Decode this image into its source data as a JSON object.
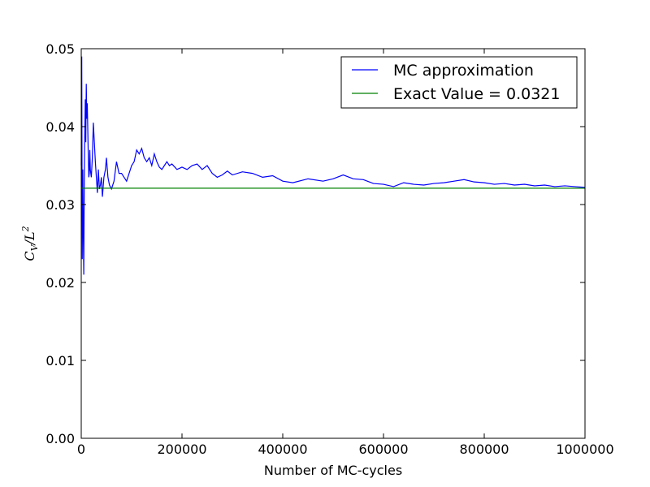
{
  "chart_data": {
    "type": "line",
    "title": "",
    "xlabel": "Number of MC-cycles",
    "ylabel": "C_V/L^2",
    "ylabel_main": "C",
    "ylabel_sub": "V",
    "ylabel_rest": "/L",
    "ylabel_sup": "2",
    "xlim": [
      0,
      1000000
    ],
    "ylim": [
      0.0,
      0.05
    ],
    "xticks": [
      0,
      200000,
      400000,
      600000,
      800000,
      1000000
    ],
    "xtick_labels": [
      "0",
      "200000",
      "400000",
      "600000",
      "800000",
      "1000000"
    ],
    "yticks": [
      0.0,
      0.01,
      0.02,
      0.03,
      0.04,
      0.05
    ],
    "ytick_labels": [
      "0.00",
      "0.01",
      "0.02",
      "0.03",
      "0.04",
      "0.05"
    ],
    "grid": false,
    "legend_position": "top-right",
    "series": [
      {
        "name": "MC approximation",
        "color": "#0000ff",
        "x": [
          0,
          1000,
          2000,
          3000,
          4000,
          5000,
          6000,
          7000,
          8000,
          9000,
          10000,
          11000,
          12000,
          13000,
          14000,
          15000,
          16000,
          17000,
          18000,
          20000,
          22000,
          24000,
          26000,
          28000,
          30000,
          32000,
          34000,
          36000,
          38000,
          40000,
          42000,
          45000,
          48000,
          50000,
          53000,
          56000,
          60000,
          65000,
          70000,
          75000,
          80000,
          85000,
          90000,
          95000,
          100000,
          105000,
          110000,
          115000,
          120000,
          125000,
          130000,
          135000,
          140000,
          145000,
          150000,
          155000,
          160000,
          165000,
          170000,
          175000,
          180000,
          190000,
          200000,
          210000,
          220000,
          230000,
          240000,
          250000,
          260000,
          270000,
          280000,
          290000,
          300000,
          320000,
          340000,
          360000,
          380000,
          400000,
          420000,
          450000,
          480000,
          500000,
          520000,
          540000,
          560000,
          580000,
          600000,
          620000,
          640000,
          660000,
          680000,
          700000,
          720000,
          740000,
          760000,
          780000,
          800000,
          820000,
          840000,
          860000,
          880000,
          900000,
          920000,
          940000,
          960000,
          980000,
          1000000
        ],
        "y": [
          0.035,
          0.049,
          0.023,
          0.0345,
          0.027,
          0.021,
          0.033,
          0.039,
          0.0435,
          0.038,
          0.0455,
          0.041,
          0.043,
          0.0395,
          0.036,
          0.0335,
          0.034,
          0.037,
          0.0345,
          0.0335,
          0.036,
          0.0405,
          0.038,
          0.0355,
          0.0335,
          0.0315,
          0.0345,
          0.032,
          0.0325,
          0.0335,
          0.031,
          0.0335,
          0.0345,
          0.036,
          0.0335,
          0.0325,
          0.032,
          0.033,
          0.0355,
          0.034,
          0.034,
          0.0335,
          0.033,
          0.034,
          0.035,
          0.0355,
          0.037,
          0.0365,
          0.0372,
          0.036,
          0.0355,
          0.036,
          0.035,
          0.0365,
          0.0355,
          0.0348,
          0.0345,
          0.035,
          0.0355,
          0.035,
          0.0352,
          0.0345,
          0.0348,
          0.0345,
          0.035,
          0.0352,
          0.0345,
          0.035,
          0.034,
          0.0335,
          0.0338,
          0.0343,
          0.0338,
          0.0342,
          0.034,
          0.0335,
          0.0337,
          0.033,
          0.0328,
          0.0333,
          0.033,
          0.0333,
          0.0338,
          0.0333,
          0.0332,
          0.0327,
          0.0326,
          0.0323,
          0.0328,
          0.0326,
          0.0325,
          0.0327,
          0.0328,
          0.033,
          0.0332,
          0.0329,
          0.0328,
          0.0326,
          0.0327,
          0.0325,
          0.0326,
          0.0324,
          0.0325,
          0.0323,
          0.0324,
          0.0323,
          0.0322
        ]
      },
      {
        "name": "Exact Value = 0.0321",
        "color": "#008000",
        "x": [
          0,
          1000000
        ],
        "y": [
          0.0321,
          0.0321
        ]
      }
    ]
  }
}
